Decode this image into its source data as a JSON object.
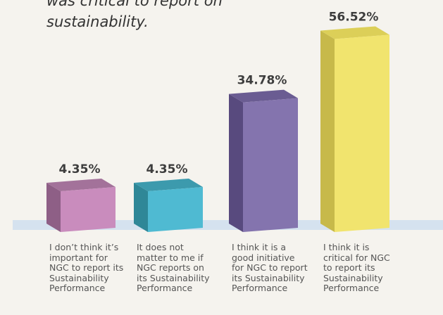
{
  "chart_data": {
    "type": "bar3d",
    "title": "was critical to report on sustainability.",
    "categories": [
      "I don’t think it’s important for NGC to report its Sustainability Performance",
      "It does not matter to me if NGC reports on its Sustainability Performance",
      "I think it is a good initiative for NGC to report its Sustainability Performance",
      "I think it is critical for NGC to report its Sustainability Performance"
    ],
    "values": [
      4.35,
      4.35,
      34.78,
      56.52
    ],
    "value_labels": [
      "4.35%",
      "4.35%",
      "34.78%",
      "56.52%"
    ],
    "colors": [
      "#c98cbd",
      "#4fbad2",
      "#8474ae",
      "#f1e46e"
    ],
    "side_colors": [
      "#8e5f86",
      "#2f8797",
      "#584a7e",
      "#c7b94a"
    ],
    "top_colors": [
      "#a3729a",
      "#3c9aad",
      "#6a5c92",
      "#dccf58"
    ]
  }
}
